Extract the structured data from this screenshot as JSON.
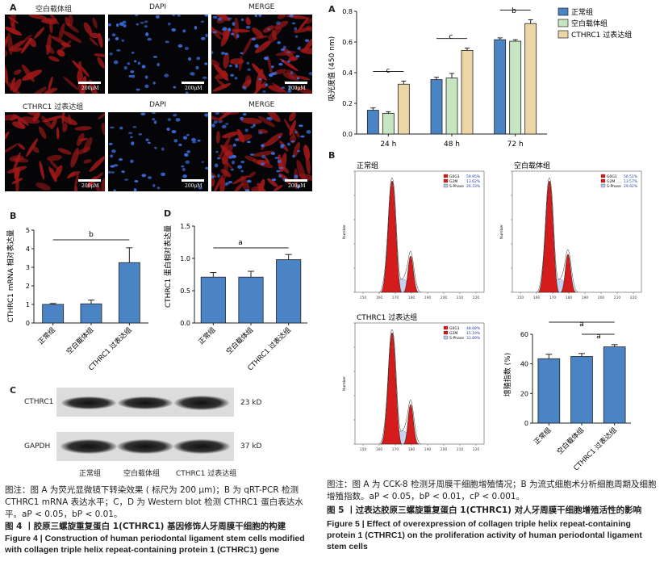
{
  "fig4": {
    "panel_a": {
      "letter": "A",
      "group1_label": "空白载体组",
      "group2_label": "CTHRC1 过表达组",
      "dapi_label": "DAPI",
      "merge_label": "MERGE",
      "scale_text": "200μM"
    },
    "panel_b": {
      "letter": "B",
      "ylabel": "CTHRC1 mRNA 相对表达量",
      "sig": "b"
    },
    "panel_d": {
      "letter": "D",
      "ylabel": "CTHRC1 蛋白相对表达量",
      "sig": "a"
    },
    "panel_c": {
      "letter": "C",
      "band1_label": "CTHRC1",
      "band1_size": "23 kD",
      "band2_label": "GAPDH",
      "band2_size": "37 kD",
      "lanes": [
        "正常组",
        "空白载体组",
        "CTHRC1 过表达组"
      ]
    },
    "caption_note": "图注：图 A 为荧光显微镜下转染效果 ( 标尺为 200 μm)；B 为 qRT-PCR 检测 CTHRC1 mRNA 表达水平；C，D 为 Western blot 检测 CTHRC1 蛋白表达水平。",
    "caption_p": "aP < 0.05，bP < 0.01。",
    "caption_cn": "图 4 丨胶原三螺旋重复蛋白 1(CTHRC1) 基因修饰人牙周膜干细胞的构建",
    "caption_en": "Figure 4 | Construction of human periodontal ligament stem cells modified with collagen triple helix repeat-containing protein 1 (CTHRC1) gene"
  },
  "fig5": {
    "panel_a": {
      "letter": "A",
      "ylabel": "吸光度值 (450 nm)",
      "sigs": [
        "c",
        "c",
        "b"
      ]
    },
    "panel_b": {
      "letter": "B",
      "titles": [
        "正常组",
        "空白载体组",
        "CTHRC1 过表达组"
      ],
      "legend_rows": [
        "G0G1",
        "G2M",
        "S-Phase"
      ],
      "legend_values": [
        [
          "59.95%",
          "13.62%",
          "26.33%"
        ],
        [
          "56.51%",
          "13.57%",
          "29.92%"
        ],
        [
          "48.68%",
          "15.19%",
          "33.89%"
        ]
      ],
      "xaxis_label": "Number",
      "prolif_ylabel": "增殖指数 (%)",
      "prolif_sigs": [
        "a",
        "a"
      ]
    },
    "caption_note": "图注：图 A 为 CCK-8 检测牙周膜干细胞增殖情况；B 为流式细胞术分析细胞周期及细胞增殖指数。aP < 0.05，bP < 0.01，cP < 0.001。",
    "caption_cn": "图 5 丨过表达胶原三螺旋重复蛋白 1(CTHRC1) 对人牙周膜干细胞增殖活性的影响",
    "caption_en": "Figure 5 | Effect of overexpression of collagen triple helix repeat-containing protein 1 (CTHRC1) on the proliferation activity of human periodontal ligament stem cells"
  },
  "chart_data": [
    {
      "type": "bar",
      "id": "fig4b",
      "categories": [
        "正常组",
        "空白载体组",
        "CTHRC1 过表达组"
      ],
      "values": [
        1.0,
        1.03,
        3.25
      ],
      "errors": [
        0.05,
        0.2,
        0.8
      ],
      "ylabel": "CTHRC1 mRNA 相对表达量",
      "ylim": [
        0,
        5
      ],
      "yticks": [
        0,
        1,
        2,
        3,
        4,
        5
      ],
      "color": "#4a84c4"
    },
    {
      "type": "bar",
      "id": "fig4d",
      "categories": [
        "正常组",
        "空白载体组",
        "CTHRC1 过表达组"
      ],
      "values": [
        0.71,
        0.71,
        0.98
      ],
      "errors": [
        0.07,
        0.09,
        0.08
      ],
      "ylabel": "CTHRC1 蛋白相对表达量",
      "ylim": [
        0,
        1.5
      ],
      "yticks": [
        0.0,
        0.5,
        1.0,
        1.5
      ],
      "color": "#4a84c4"
    },
    {
      "type": "bar",
      "id": "fig5a",
      "categories": [
        "24 h",
        "48 h",
        "72 h"
      ],
      "series": [
        {
          "name": "正常组",
          "values": [
            0.155,
            0.355,
            0.615
          ],
          "errors": [
            0.015,
            0.015,
            0.012
          ],
          "color": "#4a84c4"
        },
        {
          "name": "空白载体组",
          "values": [
            0.135,
            0.365,
            0.605
          ],
          "errors": [
            0.01,
            0.03,
            0.01
          ],
          "color": "#c6e5c0"
        },
        {
          "name": "CTHRC1 过表达组",
          "values": [
            0.325,
            0.545,
            0.72
          ],
          "errors": [
            0.02,
            0.015,
            0.025
          ],
          "color": "#ecd6a7"
        }
      ],
      "ylabel": "吸光度值 (450 nm)",
      "ylim": [
        0,
        0.8
      ],
      "yticks": [
        0.0,
        0.2,
        0.4,
        0.6,
        0.8
      ],
      "legend": "top-right"
    },
    {
      "type": "bar",
      "id": "fig5b_prolif",
      "categories": [
        "正常组",
        "空白载体组",
        "CTHRC1 过表达组"
      ],
      "values": [
        43.5,
        45,
        51.5
      ],
      "errors": [
        3,
        2,
        1.5
      ],
      "ylabel": "增殖指数 (%)",
      "ylim": [
        0,
        60
      ],
      "yticks": [
        0,
        20,
        40,
        60
      ],
      "color": "#4a84c4"
    },
    {
      "type": "area",
      "id": "fig5b_flow",
      "x_ticks": [
        150,
        160,
        170,
        180,
        190,
        200,
        210,
        220
      ],
      "samples": [
        "正常组",
        "空白载体组",
        "CTHRC1 过表达组"
      ]
    }
  ]
}
